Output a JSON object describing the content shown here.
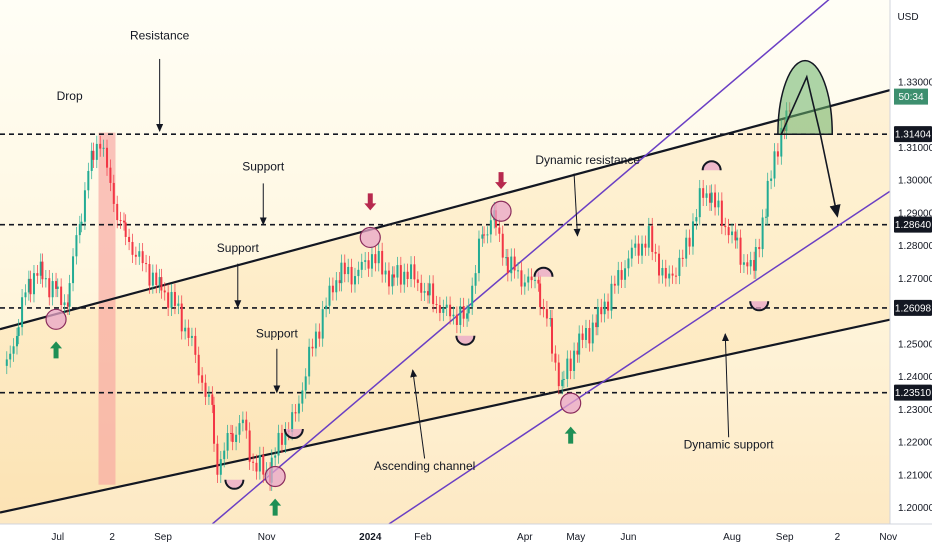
{
  "chart_data": {
    "type": "line",
    "currency": "USD",
    "countdown": "50:34",
    "y_range": [
      1.195,
      1.355
    ],
    "y_ticks": [
      "1.20000",
      "1.21000",
      "1.22000",
      "1.23000",
      "1.24000",
      "1.25000",
      "1.27000",
      "1.28000",
      "1.29000",
      "1.30000",
      "1.31000",
      "1.33000"
    ],
    "price_badges": [
      {
        "label": "1.31404",
        "value": 1.31404,
        "dark": true
      },
      {
        "label": "1.28640",
        "value": 1.2864,
        "dark": false
      },
      {
        "label": "1.26098",
        "value": 1.26098,
        "dark": false
      },
      {
        "label": "1.23510",
        "value": 1.2351,
        "dark": false
      }
    ],
    "horizontal_levels": [
      1.31404,
      1.2864,
      1.26098,
      1.2351
    ],
    "x_ticks": [
      "Jul",
      "2",
      "Sep",
      "Nov",
      "2024",
      "Feb",
      "Apr",
      "May",
      "Jun",
      "Aug",
      "Sep",
      "2",
      "Nov"
    ],
    "x_start": "2023-06-01",
    "price_series": [
      [
        "2023-06-01",
        1.241
      ],
      [
        "2023-06-08",
        1.252
      ],
      [
        "2023-06-15",
        1.268
      ],
      [
        "2023-06-22",
        1.272
      ],
      [
        "2023-07-01",
        1.266
      ],
      [
        "2023-07-08",
        1.262
      ],
      [
        "2023-07-15",
        1.285
      ],
      [
        "2023-07-22",
        1.305
      ],
      [
        "2023-07-28",
        1.313
      ],
      [
        "2023-08-03",
        1.298
      ],
      [
        "2023-08-10",
        1.284
      ],
      [
        "2023-08-20",
        1.276
      ],
      [
        "2023-08-31",
        1.268
      ],
      [
        "2023-09-10",
        1.262
      ],
      [
        "2023-09-20",
        1.25
      ],
      [
        "2023-10-01",
        1.229
      ],
      [
        "2023-10-05",
        1.212
      ],
      [
        "2023-10-12",
        1.221
      ],
      [
        "2023-10-20",
        1.226
      ],
      [
        "2023-10-26",
        1.213
      ],
      [
        "2023-11-04",
        1.211
      ],
      [
        "2023-11-12",
        1.222
      ],
      [
        "2023-11-20",
        1.228
      ],
      [
        "2023-11-28",
        1.246
      ],
      [
        "2023-12-08",
        1.262
      ],
      [
        "2023-12-15",
        1.272
      ],
      [
        "2023-12-25",
        1.271
      ],
      [
        "2024-01-04",
        1.277
      ],
      [
        "2024-01-15",
        1.27
      ],
      [
        "2024-01-25",
        1.272
      ],
      [
        "2024-02-05",
        1.266
      ],
      [
        "2024-02-15",
        1.26
      ],
      [
        "2024-02-28",
        1.258
      ],
      [
        "2024-03-08",
        1.281
      ],
      [
        "2024-03-15",
        1.289
      ],
      [
        "2024-03-22",
        1.276
      ],
      [
        "2024-04-01",
        1.27
      ],
      [
        "2024-04-10",
        1.268
      ],
      [
        "2024-04-17",
        1.254
      ],
      [
        "2024-04-24",
        1.237
      ],
      [
        "2024-05-03",
        1.249
      ],
      [
        "2024-05-14",
        1.256
      ],
      [
        "2024-05-24",
        1.266
      ],
      [
        "2024-06-05",
        1.278
      ],
      [
        "2024-06-15",
        1.282
      ],
      [
        "2024-06-25",
        1.269
      ],
      [
        "2024-07-05",
        1.276
      ],
      [
        "2024-07-15",
        1.294
      ],
      [
        "2024-07-20",
        1.297
      ],
      [
        "2024-07-28",
        1.288
      ],
      [
        "2024-08-04",
        1.282
      ],
      [
        "2024-08-10",
        1.275
      ],
      [
        "2024-08-15",
        1.273
      ],
      [
        "2024-08-22",
        1.29
      ],
      [
        "2024-08-28",
        1.308
      ],
      [
        "2024-09-02",
        1.315
      ],
      [
        "2024-09-06",
        1.321
      ]
    ],
    "channel_lines": [
      {
        "name": "Ascending channel upper",
        "style": "black",
        "p1": [
          "2023-05-28",
          1.2545
        ],
        "p2": [
          "2024-11-02",
          1.3275
        ]
      },
      {
        "name": "Ascending channel lower",
        "style": "black",
        "p1": [
          "2023-05-28",
          1.1985
        ],
        "p2": [
          "2024-11-02",
          1.2574
        ]
      },
      {
        "name": "Dynamic resistance",
        "style": "purple",
        "p1": [
          "2023-09-30",
          1.195
        ],
        "p2": [
          "2024-11-02",
          1.371
        ]
      },
      {
        "name": "Dynamic support",
        "style": "purple",
        "p1": [
          "2024-01-12",
          1.195
        ],
        "p2": [
          "2024-11-02",
          1.2966
        ]
      }
    ],
    "highlight_band": {
      "from": "2023-07-25",
      "to": "2023-08-04",
      "y_top": 1.3145,
      "y_bottom": 1.207
    },
    "circles": [
      [
        "2023-06-30",
        1.2575
      ],
      [
        "2023-11-06",
        1.2095
      ],
      [
        "2024-01-01",
        1.2825
      ],
      [
        "2024-03-18",
        1.2905
      ],
      [
        "2024-04-28",
        1.2319
      ]
    ],
    "half_circles": [
      [
        "2023-10-13",
        1.2085,
        "down"
      ],
      [
        "2023-11-17",
        1.224,
        "down"
      ],
      [
        "2024-02-26",
        1.2525,
        "down"
      ],
      [
        "2024-04-12",
        1.2705,
        "up"
      ],
      [
        "2024-07-20",
        1.303,
        "up"
      ],
      [
        "2024-08-17",
        1.263,
        "down"
      ]
    ],
    "arrows_up": [
      [
        "2023-06-30",
        1.248
      ],
      [
        "2023-11-06",
        1.2
      ],
      [
        "2024-04-28",
        1.222
      ]
    ],
    "arrows_down": [
      [
        "2024-01-01",
        1.2935
      ],
      [
        "2024-03-18",
        1.3
      ]
    ],
    "projection": [
      [
        "2024-08-30",
        1.314
      ],
      [
        "2024-09-14",
        1.3315
      ],
      [
        "2024-09-22",
        1.314
      ],
      [
        "2024-10-02",
        1.289
      ]
    ],
    "dome": {
      "center": [
        "2024-09-13",
        1.314
      ],
      "radius_days": 16,
      "top": 1.3365
    },
    "annotations": [
      {
        "text": "Resistance",
        "at": [
          "2023-08-30",
          1.343
        ]
      },
      {
        "text": "Drop",
        "at": [
          "2023-07-08",
          1.3245
        ]
      },
      {
        "text": "Support",
        "at": [
          "2023-10-30",
          1.303
        ]
      },
      {
        "text": "Support",
        "at": [
          "2023-10-15",
          1.278
        ]
      },
      {
        "text": "Support",
        "at": [
          "2023-11-07",
          1.252
        ]
      },
      {
        "text": "Ascending channel",
        "at": [
          "2024-02-02",
          1.2115
        ]
      },
      {
        "text": "Dynamic resistance",
        "at": [
          "2024-05-08",
          1.305
        ]
      },
      {
        "text": "Dynamic support",
        "at": [
          "2024-07-30",
          1.218
        ]
      }
    ],
    "pointers": [
      [
        "2023-08-30",
        1.337,
        "2023-08-30",
        1.315
      ],
      [
        "2023-10-30",
        1.299,
        "2023-10-30",
        1.2865
      ],
      [
        "2023-10-15",
        1.2745,
        "2023-10-15",
        1.2612
      ],
      [
        "2023-11-07",
        1.2485,
        "2023-11-07",
        1.2352
      ],
      [
        "2024-02-02",
        1.215,
        "2024-01-26",
        1.242
      ],
      [
        "2024-04-30",
        1.302,
        "2024-05-02",
        1.283
      ],
      [
        "2024-07-30",
        1.2215,
        "2024-07-28",
        1.253
      ]
    ]
  }
}
